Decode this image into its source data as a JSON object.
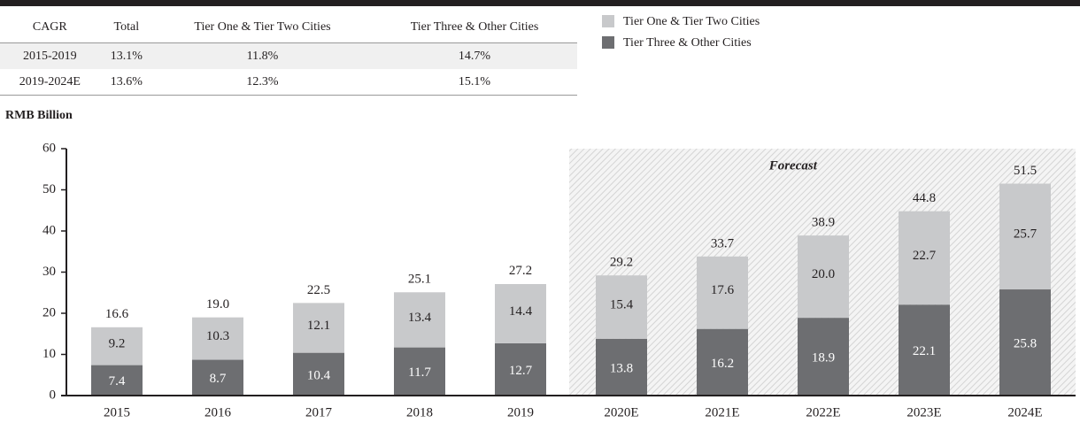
{
  "table": {
    "headers": [
      "CAGR",
      "Total",
      "Tier One & Tier Two Cities",
      "Tier Three & Other Cities"
    ],
    "rows": [
      [
        "2015-2019",
        "13.1%",
        "11.8%",
        "14.7%"
      ],
      [
        "2019-2024E",
        "13.6%",
        "12.3%",
        "15.1%"
      ]
    ]
  },
  "chart_data": {
    "type": "bar",
    "stacked": true,
    "y_label": "RMB Billion",
    "annotation": "Forecast",
    "categories": [
      "2015",
      "2016",
      "2017",
      "2018",
      "2019",
      "2020E",
      "2021E",
      "2022E",
      "2023E",
      "2024E"
    ],
    "series": [
      {
        "name": "Tier One & Tier Two Cities",
        "color": "#c8c9cb",
        "values": [
          9.2,
          10.3,
          12.1,
          13.4,
          14.4,
          15.4,
          17.6,
          20.0,
          22.7,
          25.7
        ],
        "value_labels": [
          "9.2",
          "10.3",
          "12.1",
          "13.4",
          "14.4",
          "15.4",
          "17.6",
          "20.0",
          "22.7",
          "25.7"
        ]
      },
      {
        "name": "Tier Three & Other Cities",
        "color": "#6d6e71",
        "values": [
          7.4,
          8.7,
          10.4,
          11.7,
          12.7,
          13.8,
          16.2,
          18.9,
          22.1,
          25.8
        ],
        "value_labels": [
          "7.4",
          "8.7",
          "10.4",
          "11.7",
          "12.7",
          "13.8",
          "16.2",
          "18.9",
          "22.1",
          "25.8"
        ]
      }
    ],
    "totals": {
      "values": [
        16.6,
        19.0,
        22.5,
        25.1,
        27.2,
        29.2,
        33.7,
        38.9,
        44.8,
        51.5
      ],
      "value_labels": [
        "16.6",
        "19.0",
        "22.5",
        "25.1",
        "27.2",
        "29.2",
        "33.7",
        "38.9",
        "44.8",
        "51.5"
      ]
    },
    "ylim": [
      0,
      60
    ],
    "yticks": [
      0,
      10,
      20,
      30,
      40,
      50,
      60
    ]
  }
}
